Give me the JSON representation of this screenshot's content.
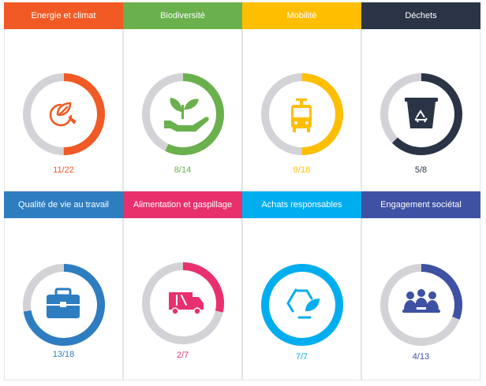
{
  "categories": [
    {
      "title": "Energie et climat",
      "score": "11/22",
      "value": 11,
      "max": 22,
      "color": "#f15a24",
      "icon": "energy-leaf-plug-icon"
    },
    {
      "title": "Biodiversité",
      "score": "8/14",
      "value": 8,
      "max": 14,
      "color": "#6ab04c",
      "icon": "hand-plant-icon"
    },
    {
      "title": "Mobilité",
      "score": "9/18",
      "value": 9,
      "max": 18,
      "color": "#ffbe00",
      "icon": "tram-icon"
    },
    {
      "title": "Déchets",
      "score": "5/8",
      "value": 5,
      "max": 8,
      "color": "#2a3446",
      "icon": "recycle-bin-icon"
    },
    {
      "title": "Qualité de vie au travail",
      "score": "13/18",
      "value": 13,
      "max": 18,
      "color": "#2e7dc1",
      "icon": "briefcase-icon"
    },
    {
      "title": "Alimentation et gaspillage",
      "score": "2/7",
      "value": 2,
      "max": 7,
      "color": "#e8306d",
      "icon": "delivery-truck-icon"
    },
    {
      "title": "Achats responsables",
      "score": "7/7",
      "value": 7,
      "max": 7,
      "color": "#00aeef",
      "icon": "recycle-leaf-icon"
    },
    {
      "title": "Engagement sociétal",
      "score": "4/13",
      "value": 4,
      "max": 13,
      "color": "#3f51a3",
      "icon": "meeting-group-icon"
    }
  ]
}
